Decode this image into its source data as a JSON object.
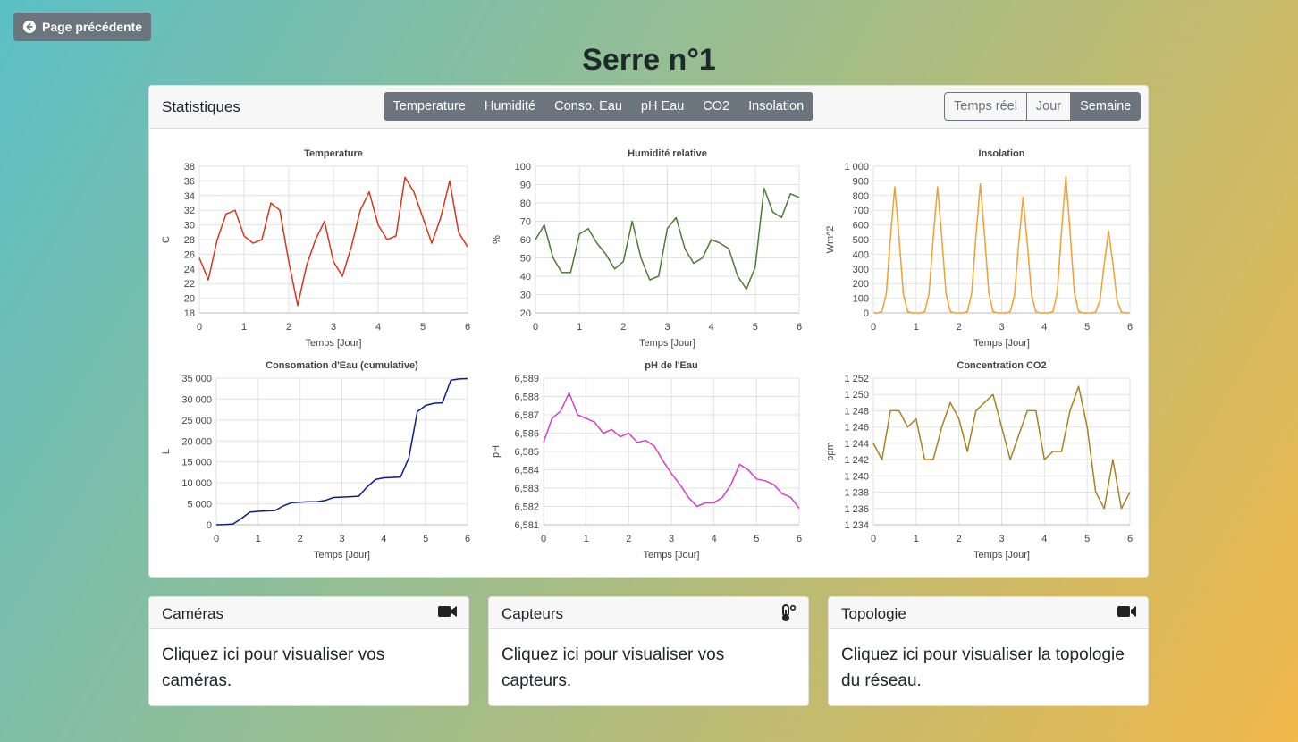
{
  "back_button": "Page précédente",
  "title": "Serre n°1",
  "panel": {
    "title": "Statistiques",
    "tabs": [
      "Temperature",
      "Humidité",
      "Conso. Eau",
      "pH Eau",
      "CO2",
      "Insolation"
    ],
    "ranges": [
      "Temps réel",
      "Jour",
      "Semaine"
    ]
  },
  "chart_data": [
    {
      "type": "line",
      "title": "Temperature",
      "x_label": "Temps [Jour]",
      "y_label": "C",
      "color": "#d4381e",
      "grid": true,
      "xlim": [
        0,
        6
      ],
      "xticks": [
        0,
        1,
        2,
        3,
        4,
        5,
        6
      ],
      "ylim": [
        18,
        38
      ],
      "yticks": [
        18,
        20,
        22,
        24,
        26,
        28,
        30,
        32,
        34,
        36,
        38
      ],
      "x": [
        0,
        0.2,
        0.4,
        0.6,
        0.8,
        1,
        1.2,
        1.4,
        1.6,
        1.8,
        2,
        2.2,
        2.4,
        2.6,
        2.8,
        3,
        3.2,
        3.4,
        3.6,
        3.8,
        4,
        4.2,
        4.4,
        4.6,
        4.8,
        5,
        5.2,
        5.4,
        5.6,
        5.8,
        6
      ],
      "values": [
        25.5,
        22.5,
        28,
        31.5,
        32,
        28.5,
        27.5,
        28,
        33,
        32,
        25,
        19,
        24.5,
        28,
        30.5,
        25,
        23,
        27,
        32,
        34.5,
        30,
        28,
        28.5,
        36.5,
        34.5,
        31,
        27.5,
        31,
        36,
        29,
        27
      ]
    },
    {
      "type": "line",
      "title": "Humidité relative",
      "x_label": "Temps [Jour]",
      "y_label": "%",
      "color": "#4e7a34",
      "grid": true,
      "xlim": [
        0,
        6
      ],
      "xticks": [
        0,
        1,
        2,
        3,
        4,
        5,
        6
      ],
      "ylim": [
        20,
        100
      ],
      "yticks": [
        20,
        30,
        40,
        50,
        60,
        70,
        80,
        90,
        100
      ],
      "x": [
        0,
        0.2,
        0.4,
        0.6,
        0.8,
        1,
        1.2,
        1.4,
        1.6,
        1.8,
        2,
        2.2,
        2.4,
        2.6,
        2.8,
        3,
        3.2,
        3.4,
        3.6,
        3.8,
        4,
        4.2,
        4.4,
        4.6,
        4.8,
        5,
        5.2,
        5.4,
        5.6,
        5.8,
        6
      ],
      "values": [
        60,
        68,
        50,
        42,
        42,
        63,
        66,
        58,
        52,
        44,
        48,
        70,
        50,
        38,
        40,
        66,
        72,
        55,
        47,
        50,
        60,
        58,
        55,
        40,
        33,
        45,
        88,
        75,
        72,
        85,
        83
      ]
    },
    {
      "type": "line",
      "title": "Insolation",
      "x_label": "Temps [Jour]",
      "y_label": "Wm^2",
      "color": "#f0a030",
      "grid": true,
      "xlim": [
        0,
        6
      ],
      "xticks": [
        0,
        1,
        2,
        3,
        4,
        5,
        6
      ],
      "ylim": [
        0,
        1000
      ],
      "yticks": [
        0,
        100,
        200,
        300,
        400,
        500,
        600,
        700,
        800,
        900,
        {
          "value": 1000,
          "label": "1 000"
        }
      ],
      "x": [
        0,
        0.1,
        0.2,
        0.3,
        0.4,
        0.5,
        0.6,
        0.7,
        0.8,
        0.9,
        1,
        1.1,
        1.2,
        1.3,
        1.4,
        1.5,
        1.6,
        1.7,
        1.8,
        1.9,
        2,
        2.1,
        2.2,
        2.3,
        2.4,
        2.5,
        2.6,
        2.7,
        2.8,
        2.9,
        3,
        3.1,
        3.2,
        3.3,
        3.4,
        3.5,
        3.6,
        3.7,
        3.8,
        3.9,
        4,
        4.1,
        4.2,
        4.3,
        4.4,
        4.5,
        4.6,
        4.7,
        4.8,
        4.9,
        5,
        5.1,
        5.2,
        5.3,
        5.4,
        5.5,
        5.6,
        5.7,
        5.8,
        5.9,
        6
      ],
      "values": [
        0,
        0,
        9,
        129,
        516,
        860,
        516,
        129,
        9,
        0,
        0,
        0,
        9,
        129,
        516,
        860,
        516,
        129,
        9,
        0,
        0,
        0,
        9,
        132,
        528,
        880,
        528,
        132,
        9,
        0,
        0,
        0,
        8,
        119,
        474,
        790,
        474,
        119,
        8,
        0,
        0,
        0,
        9,
        140,
        558,
        930,
        558,
        140,
        9,
        0,
        0,
        0,
        6,
        84,
        336,
        560,
        336,
        84,
        6,
        0,
        0
      ]
    },
    {
      "type": "line",
      "title": "Consomation d'Eau (cumulative)",
      "x_label": "Temps [Jour]",
      "y_label": "L",
      "color": "#101a8c",
      "grid": true,
      "xlim": [
        0,
        6
      ],
      "xticks": [
        0,
        1,
        2,
        3,
        4,
        5,
        6
      ],
      "ylim": [
        0,
        35000
      ],
      "yticks": [
        0,
        {
          "value": 5000,
          "label": "5 000"
        },
        {
          "value": 10000,
          "label": "10 000"
        },
        {
          "value": 15000,
          "label": "15 000"
        },
        {
          "value": 20000,
          "label": "20 000"
        },
        {
          "value": 25000,
          "label": "25 000"
        },
        {
          "value": 30000,
          "label": "30 000"
        },
        {
          "value": 35000,
          "label": "35 000"
        }
      ],
      "x": [
        0,
        0.2,
        0.4,
        0.6,
        0.8,
        1,
        1.2,
        1.4,
        1.6,
        1.8,
        2,
        2.2,
        2.4,
        2.6,
        2.8,
        3,
        3.2,
        3.4,
        3.6,
        3.8,
        4,
        4.2,
        4.4,
        4.6,
        4.8,
        5,
        5.2,
        5.4,
        5.6,
        5.8,
        6
      ],
      "values": [
        0,
        50,
        200,
        1500,
        3000,
        3200,
        3300,
        3400,
        4500,
        5300,
        5400,
        5500,
        5500,
        5800,
        6500,
        6600,
        6700,
        6800,
        9000,
        10800,
        11200,
        11300,
        11400,
        16000,
        27000,
        28500,
        29000,
        29100,
        34500,
        34800,
        34900
      ]
    },
    {
      "type": "line",
      "title": "pH de l'Eau",
      "x_label": "Temps [Jour]",
      "y_label": "pH",
      "color": "#d63fc8",
      "grid": true,
      "xlim": [
        0,
        6
      ],
      "xticks": [
        0,
        1,
        2,
        3,
        4,
        5,
        6
      ],
      "ylim": [
        6.581,
        6.589
      ],
      "yticks": [
        {
          "value": 6.581,
          "label": "6,581"
        },
        {
          "value": 6.582,
          "label": "6,582"
        },
        {
          "value": 6.583,
          "label": "6,583"
        },
        {
          "value": 6.584,
          "label": "6,584"
        },
        {
          "value": 6.585,
          "label": "6,585"
        },
        {
          "value": 6.586,
          "label": "6,586"
        },
        {
          "value": 6.587,
          "label": "6,587"
        },
        {
          "value": 6.588,
          "label": "6,588"
        },
        {
          "value": 6.589,
          "label": "6,589"
        }
      ],
      "x": [
        0,
        0.2,
        0.4,
        0.6,
        0.8,
        1,
        1.2,
        1.4,
        1.6,
        1.8,
        2,
        2.2,
        2.4,
        2.6,
        2.8,
        3,
        3.2,
        3.4,
        3.6,
        3.8,
        4,
        4.2,
        4.4,
        4.6,
        4.8,
        5,
        5.2,
        5.4,
        5.6,
        5.8,
        6
      ],
      "values": [
        6.5855,
        6.5868,
        6.5872,
        6.5882,
        6.587,
        6.5868,
        6.5866,
        6.586,
        6.5862,
        6.5858,
        6.586,
        6.5855,
        6.5856,
        6.5853,
        6.5845,
        6.5838,
        6.5832,
        6.5825,
        6.582,
        6.5822,
        6.5822,
        6.5825,
        6.5832,
        6.5843,
        6.584,
        6.5835,
        6.5834,
        6.5832,
        6.5827,
        6.5825,
        6.5819
      ]
    },
    {
      "type": "line",
      "title": "Concentration CO2",
      "x_label": "Temps [Jour]",
      "y_label": "ppm",
      "color": "#a8821c",
      "grid": true,
      "xlim": [
        0,
        6
      ],
      "xticks": [
        0,
        1,
        2,
        3,
        4,
        5,
        6
      ],
      "ylim": [
        1234,
        1252
      ],
      "yticks": [
        {
          "value": 1234,
          "label": "1 234"
        },
        {
          "value": 1236,
          "label": "1 236"
        },
        {
          "value": 1238,
          "label": "1 238"
        },
        {
          "value": 1240,
          "label": "1 240"
        },
        {
          "value": 1242,
          "label": "1 242"
        },
        {
          "value": 1244,
          "label": "1 244"
        },
        {
          "value": 1246,
          "label": "1 246"
        },
        {
          "value": 1248,
          "label": "1 248"
        },
        {
          "value": 1250,
          "label": "1 250"
        },
        {
          "value": 1252,
          "label": "1 252"
        }
      ],
      "x": [
        0,
        0.2,
        0.4,
        0.6,
        0.8,
        1,
        1.2,
        1.4,
        1.6,
        1.8,
        2,
        2.2,
        2.4,
        2.6,
        2.8,
        3,
        3.2,
        3.4,
        3.6,
        3.8,
        4,
        4.2,
        4.4,
        4.6,
        4.8,
        5,
        5.2,
        5.4,
        5.6,
        5.8,
        6
      ],
      "values": [
        1244,
        1242,
        1248,
        1248,
        1246,
        1247,
        1242,
        1242,
        1246,
        1249,
        1247,
        1243,
        1248,
        1249,
        1250,
        1246,
        1242,
        1245,
        1248,
        1248,
        1242,
        1243,
        1243,
        1248,
        1251,
        1246,
        1238,
        1236,
        1242,
        1236,
        1238
      ]
    }
  ],
  "cards": [
    {
      "title": "Caméras",
      "text": "Cliquez ici pour visualiser vos caméras."
    },
    {
      "title": "Capteurs",
      "text": "Cliquez ici pour visualiser vos capteurs."
    },
    {
      "title": "Topologie",
      "text": "Cliquez ici pour visualiser la topologie du réseau."
    }
  ]
}
